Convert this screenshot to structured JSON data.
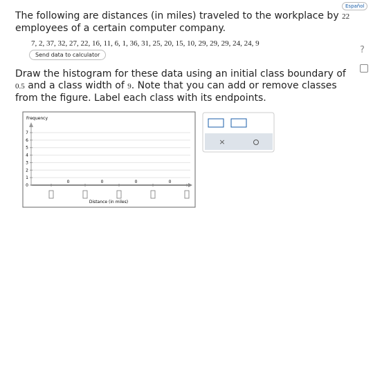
{
  "header": {
    "language_link": "Español"
  },
  "question": {
    "intro_before": "The following are distances (in miles) traveled to the workplace by",
    "count": "22",
    "intro_after": "employees of a certain computer company.",
    "data": "7, 2, 37, 32, 27, 22, 16, 11, 6, 1, 36, 31, 25, 20, 15, 10, 29, 29, 29, 24, 24, 9",
    "calculator_button": "Send data to calculator",
    "instruction_before": "Draw the histogram for these data using an initial class boundary of",
    "boundary": "0.5",
    "instruction_middle": "and a class width of",
    "width": "9",
    "instruction_after": ". Note that you can add or remove classes from the figure. Label each class with its endpoints."
  },
  "help": "?",
  "graph": {
    "y_label": "Frequency",
    "y_ticks": [
      0,
      1,
      2,
      3,
      4,
      5,
      6,
      7
    ],
    "x_label": "Distance (in miles)",
    "class_frequencies": [
      0,
      0,
      0,
      0
    ]
  },
  "toolbar": {
    "clear": "×"
  }
}
